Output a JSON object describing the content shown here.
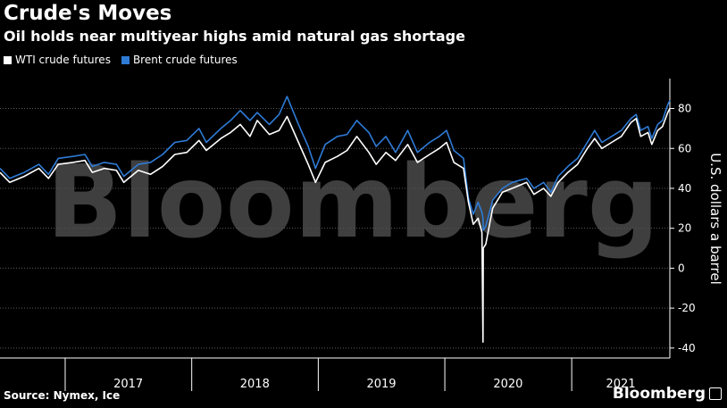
{
  "header": {
    "title": "Crude's Moves",
    "subtitle": "Oil holds near multiyear highs amid natural gas shortage"
  },
  "footer": {
    "source": "Source: Nymex, Ice",
    "brand": "Bloomberg",
    "brand_icon": "bloomberg-logo-icon"
  },
  "colors": {
    "background": "#000000",
    "wti": "#ffffff",
    "brent": "#2e7bd6",
    "grid": "#5a5a5a",
    "watermark": "#555555"
  },
  "chart_data": {
    "type": "line",
    "title": "Crude's Moves",
    "subtitle": "Oil holds near multiyear highs amid natural gas shortage",
    "ylabel": "U.S. dollars a barrel",
    "xlabel": "",
    "watermark": "Bloomberg",
    "ylim": [
      -45,
      95
    ],
    "yticks": [
      -40,
      -20,
      0,
      20,
      40,
      60,
      80
    ],
    "x_axis": "date",
    "xlim": [
      "2016-06-27",
      "2021-10-11"
    ],
    "years": [
      {
        "label": "2017",
        "start": "2017-01-01",
        "end": "2017-12-31"
      },
      {
        "label": "2018",
        "start": "2018-01-01",
        "end": "2018-12-31"
      },
      {
        "label": "2019",
        "start": "2019-01-01",
        "end": "2019-12-31"
      },
      {
        "label": "2020",
        "start": "2020-01-01",
        "end": "2020-12-31"
      },
      {
        "label": "2021",
        "start": "2021-01-01",
        "end": "2021-10-11"
      }
    ],
    "grid": true,
    "legend_position": "top-left",
    "series": [
      {
        "name": "WTI crude futures",
        "color": "#ffffff",
        "points": [
          [
            "2016-06-27",
            48
          ],
          [
            "2016-07-25",
            43
          ],
          [
            "2016-09-05",
            46
          ],
          [
            "2016-10-17",
            50
          ],
          [
            "2016-11-14",
            45
          ],
          [
            "2016-12-12",
            52
          ],
          [
            "2017-01-23",
            53
          ],
          [
            "2017-02-27",
            54
          ],
          [
            "2017-03-20",
            48
          ],
          [
            "2017-04-24",
            50
          ],
          [
            "2017-05-29",
            49
          ],
          [
            "2017-06-19",
            43
          ],
          [
            "2017-07-31",
            49
          ],
          [
            "2017-09-04",
            47
          ],
          [
            "2017-10-09",
            51
          ],
          [
            "2017-11-13",
            57
          ],
          [
            "2017-12-18",
            58
          ],
          [
            "2018-01-22",
            64
          ],
          [
            "2018-02-12",
            59
          ],
          [
            "2018-03-26",
            65
          ],
          [
            "2018-04-23",
            68
          ],
          [
            "2018-05-21",
            72
          ],
          [
            "2018-06-18",
            66
          ],
          [
            "2018-07-09",
            74
          ],
          [
            "2018-08-13",
            67
          ],
          [
            "2018-09-10",
            69
          ],
          [
            "2018-10-03",
            76
          ],
          [
            "2018-11-05",
            63
          ],
          [
            "2018-12-03",
            52
          ],
          [
            "2018-12-24",
            43
          ],
          [
            "2019-01-21",
            53
          ],
          [
            "2019-02-25",
            56
          ],
          [
            "2019-03-25",
            59
          ],
          [
            "2019-04-22",
            66
          ],
          [
            "2019-05-27",
            58
          ],
          [
            "2019-06-17",
            52
          ],
          [
            "2019-07-15",
            58
          ],
          [
            "2019-08-12",
            54
          ],
          [
            "2019-09-16",
            62
          ],
          [
            "2019-10-14",
            53
          ],
          [
            "2019-11-18",
            57
          ],
          [
            "2019-12-16",
            60
          ],
          [
            "2020-01-06",
            63
          ],
          [
            "2020-01-27",
            53
          ],
          [
            "2020-02-24",
            50
          ],
          [
            "2020-03-09",
            33
          ],
          [
            "2020-03-23",
            22
          ],
          [
            "2020-04-06",
            25
          ],
          [
            "2020-04-17",
            18
          ],
          [
            "2020-04-20",
            -37
          ],
          [
            "2020-04-21",
            10
          ],
          [
            "2020-04-28",
            12
          ],
          [
            "2020-05-18",
            30
          ],
          [
            "2020-06-15",
            38
          ],
          [
            "2020-07-13",
            40
          ],
          [
            "2020-08-24",
            43
          ],
          [
            "2020-09-14",
            37
          ],
          [
            "2020-10-12",
            40
          ],
          [
            "2020-11-02",
            36
          ],
          [
            "2020-11-23",
            43
          ],
          [
            "2020-12-21",
            48
          ],
          [
            "2021-01-18",
            52
          ],
          [
            "2021-02-15",
            60
          ],
          [
            "2021-03-08",
            65
          ],
          [
            "2021-03-29",
            60
          ],
          [
            "2021-04-26",
            63
          ],
          [
            "2021-05-24",
            66
          ],
          [
            "2021-06-21",
            73
          ],
          [
            "2021-07-06",
            75
          ],
          [
            "2021-07-19",
            66
          ],
          [
            "2021-08-09",
            68
          ],
          [
            "2021-08-20",
            62
          ],
          [
            "2021-09-06",
            69
          ],
          [
            "2021-09-20",
            71
          ],
          [
            "2021-10-05",
            78
          ],
          [
            "2021-10-11",
            80
          ]
        ]
      },
      {
        "name": "Brent crude futures",
        "color": "#2e7bd6",
        "points": [
          [
            "2016-06-27",
            50
          ],
          [
            "2016-07-25",
            45
          ],
          [
            "2016-09-05",
            48
          ],
          [
            "2016-10-17",
            52
          ],
          [
            "2016-11-14",
            47
          ],
          [
            "2016-12-12",
            55
          ],
          [
            "2017-01-23",
            56
          ],
          [
            "2017-02-27",
            57
          ],
          [
            "2017-03-20",
            51
          ],
          [
            "2017-04-24",
            53
          ],
          [
            "2017-05-29",
            52
          ],
          [
            "2017-06-19",
            46
          ],
          [
            "2017-07-31",
            52
          ],
          [
            "2017-09-04",
            53
          ],
          [
            "2017-10-09",
            57
          ],
          [
            "2017-11-13",
            63
          ],
          [
            "2017-12-18",
            64
          ],
          [
            "2018-01-22",
            70
          ],
          [
            "2018-02-12",
            63
          ],
          [
            "2018-03-26",
            70
          ],
          [
            "2018-04-23",
            74
          ],
          [
            "2018-05-21",
            79
          ],
          [
            "2018-06-18",
            74
          ],
          [
            "2018-07-09",
            78
          ],
          [
            "2018-08-13",
            72
          ],
          [
            "2018-09-10",
            77
          ],
          [
            "2018-10-03",
            86
          ],
          [
            "2018-11-05",
            72
          ],
          [
            "2018-12-03",
            61
          ],
          [
            "2018-12-24",
            50
          ],
          [
            "2019-01-21",
            62
          ],
          [
            "2019-02-25",
            66
          ],
          [
            "2019-03-25",
            67
          ],
          [
            "2019-04-22",
            74
          ],
          [
            "2019-05-27",
            68
          ],
          [
            "2019-06-17",
            61
          ],
          [
            "2019-07-15",
            66
          ],
          [
            "2019-08-12",
            58
          ],
          [
            "2019-09-16",
            69
          ],
          [
            "2019-10-14",
            58
          ],
          [
            "2019-11-18",
            63
          ],
          [
            "2019-12-16",
            66
          ],
          [
            "2020-01-06",
            69
          ],
          [
            "2020-01-27",
            59
          ],
          [
            "2020-02-24",
            55
          ],
          [
            "2020-03-09",
            35
          ],
          [
            "2020-03-23",
            27
          ],
          [
            "2020-04-06",
            33
          ],
          [
            "2020-04-17",
            28
          ],
          [
            "2020-04-20",
            25
          ],
          [
            "2020-04-21",
            19
          ],
          [
            "2020-04-28",
            21
          ],
          [
            "2020-05-18",
            34
          ],
          [
            "2020-06-15",
            40
          ],
          [
            "2020-07-13",
            43
          ],
          [
            "2020-08-24",
            45
          ],
          [
            "2020-09-14",
            40
          ],
          [
            "2020-10-12",
            43
          ],
          [
            "2020-11-02",
            38
          ],
          [
            "2020-11-23",
            46
          ],
          [
            "2020-12-21",
            51
          ],
          [
            "2021-01-18",
            55
          ],
          [
            "2021-02-15",
            63
          ],
          [
            "2021-03-08",
            69
          ],
          [
            "2021-03-29",
            63
          ],
          [
            "2021-04-26",
            66
          ],
          [
            "2021-05-24",
            69
          ],
          [
            "2021-06-21",
            75
          ],
          [
            "2021-07-06",
            77
          ],
          [
            "2021-07-19",
            69
          ],
          [
            "2021-08-09",
            71
          ],
          [
            "2021-08-20",
            65
          ],
          [
            "2021-09-06",
            72
          ],
          [
            "2021-09-20",
            74
          ],
          [
            "2021-10-05",
            82
          ],
          [
            "2021-10-11",
            84
          ]
        ]
      }
    ]
  }
}
